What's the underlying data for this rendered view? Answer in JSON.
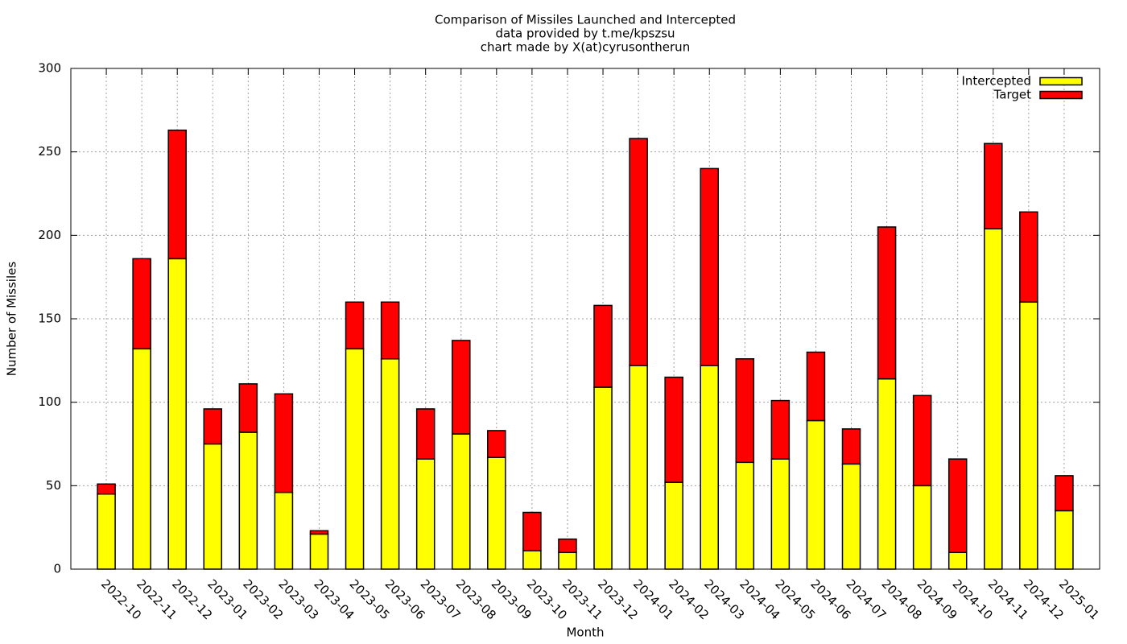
{
  "chart_data": {
    "type": "stacked_bar",
    "title_lines": [
      "Comparison of Missiles Launched and Intercepted",
      "data provided by t.me/kpszsu",
      "chart made by X(at)cyrusontherun"
    ],
    "x_label": "Month",
    "y_label": "Number of Missiles",
    "categories": [
      "2022-10",
      "2022-11",
      "2022-12",
      "2023-01",
      "2023-02",
      "2023-03",
      "2023-04",
      "2023-05",
      "2023-06",
      "2023-07",
      "2023-08",
      "2023-09",
      "2023-10",
      "2023-11",
      "2023-12",
      "2024-01",
      "2024-02",
      "2024-03",
      "2024-04",
      "2024-05",
      "2024-06",
      "2024-07",
      "2024-08",
      "2024-09",
      "2024-10",
      "2024-11",
      "2024-12",
      "2025-01"
    ],
    "series": [
      {
        "name": "Intercepted",
        "color": "#ffff00",
        "values": [
          45,
          132,
          186,
          75,
          82,
          46,
          21,
          132,
          126,
          66,
          81,
          67,
          11,
          10,
          109,
          122,
          52,
          122,
          64,
          66,
          89,
          63,
          114,
          50,
          10,
          204,
          160,
          35
        ]
      },
      {
        "name": "Target",
        "color": "#ff0000",
        "values": [
          6,
          54,
          77,
          21,
          29,
          59,
          2,
          28,
          34,
          30,
          56,
          16,
          23,
          8,
          49,
          136,
          63,
          118,
          62,
          35,
          41,
          21,
          91,
          54,
          56,
          51,
          54,
          21
        ]
      }
    ],
    "ylim": [
      0,
      300
    ],
    "yticks": [
      0,
      50,
      100,
      150,
      200,
      250,
      300
    ],
    "grid": true,
    "legend": "top-right"
  }
}
